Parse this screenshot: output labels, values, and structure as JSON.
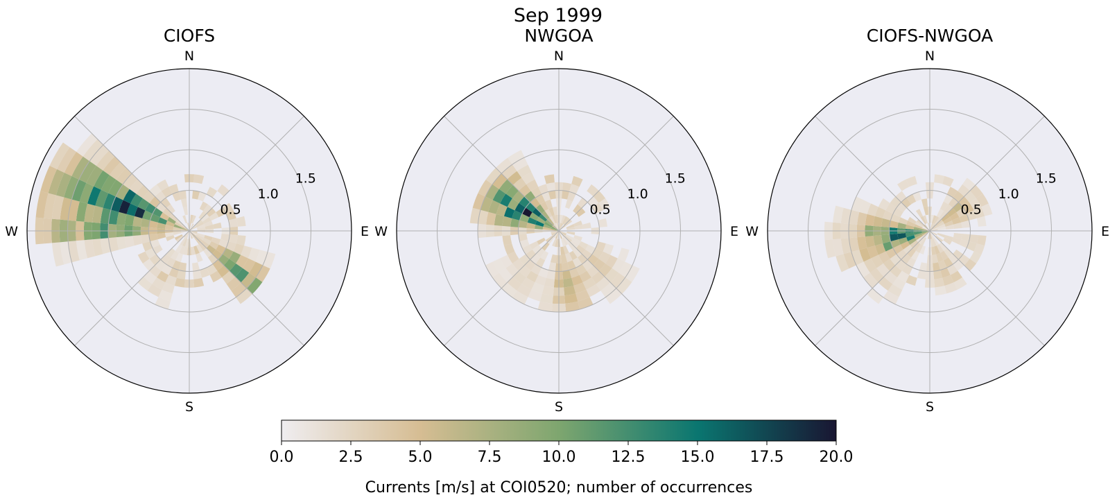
{
  "figure": {
    "suptitle": "Sep 1999"
  },
  "chart_data": {
    "type": "heatmap",
    "projection": "polar",
    "direction_convention": "compass (0 = N, clockwise)",
    "radial_ticks": [
      "0.5",
      "1.0",
      "1.5"
    ],
    "radial_tick_values": [
      0.5,
      1.0,
      1.5
    ],
    "rmax": 2.0,
    "direction_labels": {
      "n": "N",
      "e": "E",
      "s": "S",
      "w": "W"
    },
    "grid": true,
    "bin_speed_width": 0.1,
    "colormap": [
      "#efedf0",
      "#d6bd93",
      "#7ea66f",
      "#0a7670",
      "#191632"
    ],
    "colorbar": {
      "min": 0,
      "max": 20,
      "ticks": [
        "0.0",
        "2.5",
        "5.0",
        "7.5",
        "10.0",
        "12.5",
        "15.0",
        "17.5",
        "20.0"
      ],
      "tick_values": [
        0,
        2.5,
        5,
        7.5,
        10,
        12.5,
        15,
        17.5,
        20
      ],
      "label": "Currents [m/s] at COI0520; number of occurrences"
    },
    "panels": [
      {
        "title": "CIOFS",
        "lobes": [
          {
            "direction": 292,
            "dir_halfwidth": 20,
            "r_max": 1.85,
            "peak_r": 0.9,
            "peak": 17
          },
          {
            "direction": 275,
            "dir_halfwidth": 15,
            "r_max": 1.9,
            "peak_r": 1.0,
            "peak": 12
          },
          {
            "direction": 128,
            "dir_halfwidth": 18,
            "r_max": 1.15,
            "peak_r": 0.8,
            "peak": 11
          },
          {
            "direction": 210,
            "dir_halfwidth": 30,
            "r_max": 1.1,
            "peak_r": 0.6,
            "peak": 2
          }
        ]
      },
      {
        "title": "NWGOA",
        "lobes": [
          {
            "direction": 300,
            "dir_halfwidth": 30,
            "r_max": 1.15,
            "peak_r": 0.45,
            "peak": 17
          },
          {
            "direction": 170,
            "dir_halfwidth": 25,
            "r_max": 1.0,
            "peak_r": 0.7,
            "peak": 6
          },
          {
            "direction": 130,
            "dir_halfwidth": 25,
            "r_max": 1.1,
            "peak_r": 0.6,
            "peak": 3
          },
          {
            "direction": 220,
            "dir_halfwidth": 35,
            "r_max": 1.0,
            "peak_r": 0.7,
            "peak": 2
          }
        ]
      },
      {
        "title": "CIOFS-NWGOA",
        "lobes": [
          {
            "direction": 262,
            "dir_halfwidth": 30,
            "r_max": 1.4,
            "peak_r": 0.25,
            "peak": 16
          },
          {
            "direction": 55,
            "dir_halfwidth": 30,
            "r_max": 0.85,
            "peak_r": 0.4,
            "peak": 5
          },
          {
            "direction": 160,
            "dir_halfwidth": 30,
            "r_max": 0.8,
            "peak_r": 0.4,
            "peak": 4
          },
          {
            "direction": 225,
            "dir_halfwidth": 30,
            "r_max": 1.2,
            "peak_r": 0.5,
            "peak": 3
          }
        ]
      }
    ]
  }
}
